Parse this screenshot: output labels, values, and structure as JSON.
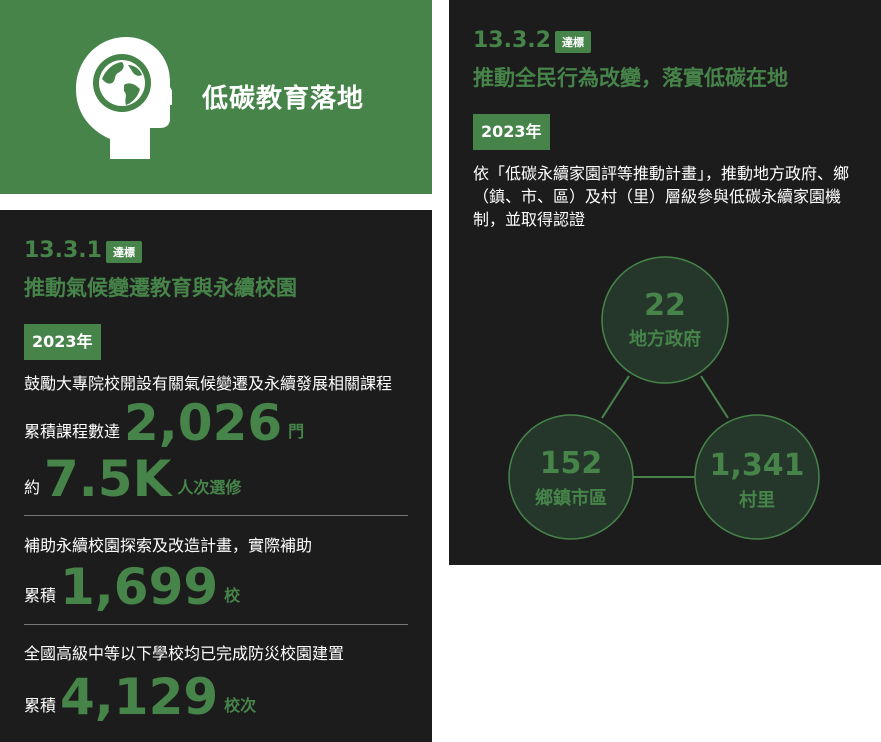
{
  "banner": {
    "title": "低碳教育落地"
  },
  "left": {
    "code": "13.3.1",
    "badge": "達標",
    "subtitle": "推動氣候變遷教育與永續校園",
    "year": "2023年",
    "block1": {
      "desc": "鼓勵大專院校開設有關氣候變遷及永續發展相關課程",
      "line1_prefix": "累積課程數達",
      "line1_value": "2,026",
      "line1_unit": "門",
      "line2_prefix": "約",
      "line2_value": "7.5K",
      "line2_unit": "人次選修"
    },
    "block2": {
      "desc": "補助永續校園探索及改造計畫，實際補助",
      "prefix": "累積",
      "value": "1,699",
      "unit": "校"
    },
    "block3": {
      "desc": "全國高級中等以下學校均已完成防災校園建置",
      "prefix": "累積",
      "value": "4,129",
      "unit": "校次"
    }
  },
  "right": {
    "code": "13.3.2",
    "badge": "達標",
    "subtitle": "推動全民行為改變，落實低碳在地",
    "year": "2023年",
    "desc": "依「低碳永續家園評等推動計畫」，推動地方政府、鄉（鎮、市、區）及村（里）層級參與低碳永續家園機制，並取得認證",
    "nodes": [
      {
        "value": "22",
        "label": "地方政府"
      },
      {
        "value": "152",
        "label": "鄉鎮市區"
      },
      {
        "value": "1,341",
        "label": "村里"
      }
    ]
  },
  "colors": {
    "green": "#46844a",
    "panel": "#1c1c1c",
    "node_fill": "#25362a"
  }
}
